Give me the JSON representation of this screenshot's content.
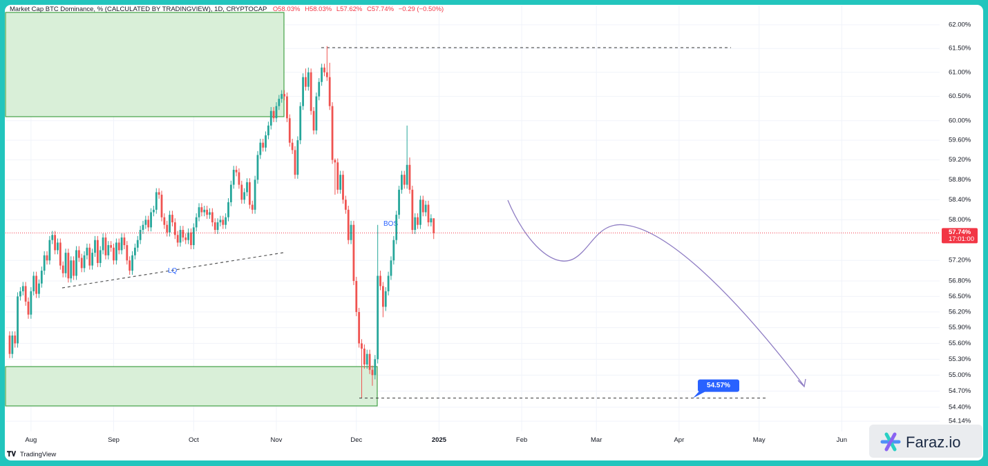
{
  "chart_data": {
    "type": "candlestick",
    "title": "Market Cap BTC Dominance, % (CALCULATED BY TRADINGVIEW), 1D, CRYPTOCAP",
    "legend_ohlc": [
      "O58.03%",
      "H58.03%",
      "L57.62%",
      "C57.74%"
    ],
    "change": "−0.29 (−0.50%)",
    "up_color": "#26a69a",
    "down_color": "#ef5350",
    "log_scale": true,
    "grid": true,
    "ylim": [
      53.95,
      62.41
    ],
    "yticks": [
      {
        "value": 62.0,
        "label": "62.00%"
      },
      {
        "value": 61.5,
        "label": "61.50%"
      },
      {
        "value": 61.0,
        "label": "61.00%"
      },
      {
        "value": 60.5,
        "label": "60.50%"
      },
      {
        "value": 60.0,
        "label": "60.00%"
      },
      {
        "value": 59.6,
        "label": "59.60%"
      },
      {
        "value": 59.2,
        "label": "59.20%"
      },
      {
        "value": 58.8,
        "label": "58.80%"
      },
      {
        "value": 58.4,
        "label": "58.40%"
      },
      {
        "value": 58.0,
        "label": "58.00%"
      },
      {
        "value": 57.2,
        "label": "57.20%"
      },
      {
        "value": 56.8,
        "label": "56.80%"
      },
      {
        "value": 56.5,
        "label": "56.50%"
      },
      {
        "value": 56.2,
        "label": "56.20%"
      },
      {
        "value": 55.9,
        "label": "55.90%"
      },
      {
        "value": 55.6,
        "label": "55.60%"
      },
      {
        "value": 55.3,
        "label": "55.30%"
      },
      {
        "value": 55.0,
        "label": "55.00%"
      },
      {
        "value": 54.7,
        "label": "54.70%"
      },
      {
        "value": 54.4,
        "label": "54.40%"
      },
      {
        "value": 54.14,
        "label": "54.14%"
      }
    ],
    "xlim": [
      -1.55,
      348.7
    ],
    "xticks": [
      {
        "value": 8,
        "label": "Aug"
      },
      {
        "value": 39,
        "label": "Sep"
      },
      {
        "value": 69,
        "label": "Oct"
      },
      {
        "value": 100,
        "label": "Nov"
      },
      {
        "value": 130,
        "label": "Dec"
      },
      {
        "value": 161,
        "label": "2025"
      },
      {
        "value": 192,
        "label": "Feb"
      },
      {
        "value": 220,
        "label": "Mar"
      },
      {
        "value": 251,
        "label": "Apr"
      },
      {
        "value": 281,
        "label": "May"
      },
      {
        "value": 312,
        "label": "Jun"
      }
    ],
    "open": [
      55.75,
      55.4,
      55.75,
      55.6,
      56.5,
      56.6,
      56.7,
      56.4,
      56.15,
      56.6,
      56.9,
      56.55,
      56.75,
      57.0,
      57.3,
      57.2,
      57.6,
      57.7,
      57.4,
      57.55,
      57.1,
      56.95,
      57.35,
      56.85,
      57.2,
      56.9,
      57.4,
      57.25,
      57.05,
      57.3,
      57.45,
      57.1,
      57.35,
      57.6,
      57.15,
      57.4,
      57.65,
      57.3,
      57.5,
      57.45,
      57.2,
      57.55,
      57.4,
      57.65,
      57.5,
      57.2,
      57.0,
      57.3,
      57.45,
      57.6,
      57.8,
      57.9,
      58.0,
      57.85,
      58.15,
      58.2,
      58.55,
      58.5,
      58.05,
      57.9,
      57.75,
      58.1,
      57.95,
      57.7,
      57.55,
      57.8,
      57.65,
      57.6,
      57.75,
      57.5,
      57.85,
      58.05,
      58.25,
      58.15,
      58.2,
      58.1,
      58.15,
      57.95,
      57.8,
      57.95,
      58.0,
      57.9,
      58.05,
      58.35,
      58.7,
      59.0,
      58.95,
      58.7,
      58.4,
      58.55,
      58.75,
      58.3,
      58.2,
      58.8,
      59.3,
      59.55,
      59.45,
      59.7,
      59.9,
      60.2,
      60.05,
      60.3,
      60.45,
      60.55,
      60.5,
      60.05,
      59.55,
      59.4,
      58.9,
      59.6,
      60.3,
      60.9,
      60.7,
      61.0,
      60.2,
      59.8,
      60.5,
      60.8,
      61.1,
      61.0,
      60.9,
      60.3,
      59.2,
      59.15,
      58.6,
      58.9,
      58.4,
      58.2,
      57.6,
      57.9,
      56.8,
      56.2,
      55.6,
      55.5,
      55.2,
      55.4,
      55.1,
      55.0,
      55.3,
      56.9,
      56.7,
      56.3,
      56.6,
      56.9,
      57.2,
      57.6,
      58.1,
      58.6,
      58.9,
      58.7,
      59.1,
      58.6,
      57.8,
      58.05,
      57.9,
      58.4,
      58.15,
      58.3,
      57.95,
      58.03
    ],
    "high": [
      55.83,
      55.83,
      55.83,
      56.58,
      56.68,
      56.78,
      56.78,
      56.48,
      56.68,
      56.98,
      56.98,
      56.83,
      57.08,
      57.38,
      57.38,
      57.68,
      57.78,
      57.78,
      57.63,
      57.63,
      57.18,
      57.43,
      57.43,
      57.28,
      57.28,
      57.48,
      57.48,
      57.33,
      57.38,
      57.53,
      57.53,
      57.43,
      57.68,
      57.68,
      57.48,
      57.73,
      57.73,
      57.58,
      57.58,
      57.53,
      57.63,
      57.63,
      57.73,
      57.73,
      57.58,
      57.28,
      57.38,
      57.53,
      57.68,
      57.88,
      57.98,
      58.08,
      58.08,
      58.23,
      58.28,
      58.63,
      58.63,
      58.58,
      58.13,
      57.98,
      58.18,
      58.18,
      58.03,
      57.78,
      57.88,
      57.88,
      57.73,
      57.83,
      57.83,
      57.93,
      58.13,
      58.33,
      58.33,
      58.28,
      58.28,
      58.23,
      58.23,
      58.03,
      58.03,
      58.08,
      58.08,
      58.13,
      58.43,
      58.78,
      59.08,
      59.08,
      59.03,
      58.78,
      58.63,
      58.83,
      58.83,
      58.38,
      58.88,
      59.38,
      59.63,
      59.63,
      59.78,
      59.98,
      60.28,
      60.28,
      60.38,
      60.53,
      60.63,
      60.63,
      60.58,
      60.13,
      59.63,
      59.48,
      59.68,
      60.38,
      60.98,
      61.08,
      61.1,
      61.08,
      60.28,
      60.58,
      60.88,
      61.18,
      61.18,
      61.55,
      61.2,
      60.38,
      59.23,
      59.23,
      58.98,
      58.98,
      58.48,
      58.28,
      57.98,
      57.98,
      56.88,
      56.28,
      55.68,
      55.58,
      55.48,
      55.48,
      55.18,
      55.38,
      57.9,
      57.0,
      56.78,
      56.68,
      56.98,
      57.28,
      57.68,
      58.18,
      58.68,
      58.98,
      58.98,
      59.9,
      59.25,
      58.68,
      58.13,
      58.13,
      58.48,
      58.48,
      58.38,
      58.38,
      58.11,
      58.03
    ],
    "low": [
      55.32,
      55.32,
      55.52,
      55.52,
      56.42,
      56.52,
      56.32,
      56.07,
      56.07,
      56.52,
      56.47,
      56.47,
      56.67,
      56.92,
      57.12,
      57.12,
      57.52,
      57.32,
      57.32,
      57.02,
      56.87,
      56.87,
      56.77,
      56.77,
      56.82,
      56.82,
      57.17,
      56.97,
      56.97,
      57.22,
      57.02,
      57.02,
      57.27,
      57.07,
      57.07,
      57.32,
      57.22,
      57.22,
      57.37,
      57.12,
      57.12,
      57.32,
      57.32,
      57.42,
      57.12,
      56.92,
      56.92,
      57.22,
      57.37,
      57.52,
      57.72,
      57.82,
      57.77,
      57.77,
      58.07,
      58.12,
      58.42,
      57.97,
      57.82,
      57.67,
      57.67,
      57.87,
      57.62,
      57.47,
      57.47,
      57.57,
      57.52,
      57.52,
      57.42,
      57.42,
      57.77,
      57.97,
      58.07,
      58.07,
      58.02,
      58.02,
      57.87,
      57.72,
      57.72,
      57.87,
      57.82,
      57.82,
      57.97,
      58.27,
      58.62,
      58.87,
      58.62,
      58.32,
      58.32,
      58.47,
      58.22,
      58.12,
      58.12,
      58.72,
      59.22,
      59.37,
      59.37,
      59.62,
      59.82,
      59.97,
      59.97,
      60.22,
      60.37,
      60.42,
      59.97,
      59.47,
      59.32,
      58.82,
      58.82,
      59.52,
      60.22,
      60.62,
      60.62,
      60.12,
      59.72,
      59.72,
      60.42,
      60.72,
      60.92,
      60.82,
      60.22,
      59.12,
      58.5,
      58.52,
      58.52,
      58.32,
      58.12,
      57.52,
      57.52,
      56.72,
      56.12,
      55.52,
      54.57,
      55.12,
      55.12,
      55.02,
      54.8,
      54.92,
      55.22,
      56.62,
      56.1,
      56.22,
      56.52,
      56.82,
      57.12,
      57.52,
      58.02,
      58.52,
      58.62,
      58.62,
      58.52,
      57.72,
      57.72,
      57.82,
      57.82,
      58.07,
      58.07,
      57.87,
      57.87,
      57.62
    ],
    "close": [
      55.4,
      55.75,
      55.6,
      56.5,
      56.6,
      56.7,
      56.4,
      56.15,
      56.6,
      56.9,
      56.55,
      56.75,
      57.0,
      57.3,
      57.2,
      57.6,
      57.7,
      57.4,
      57.55,
      57.1,
      56.95,
      57.35,
      56.85,
      57.2,
      56.9,
      57.4,
      57.25,
      57.05,
      57.3,
      57.45,
      57.1,
      57.35,
      57.6,
      57.15,
      57.4,
      57.65,
      57.3,
      57.5,
      57.45,
      57.2,
      57.55,
      57.4,
      57.65,
      57.5,
      57.2,
      57.0,
      57.3,
      57.45,
      57.6,
      57.8,
      57.9,
      58.0,
      57.85,
      58.15,
      58.2,
      58.55,
      58.5,
      58.05,
      57.9,
      57.75,
      58.1,
      57.95,
      57.7,
      57.55,
      57.8,
      57.65,
      57.6,
      57.75,
      57.5,
      57.85,
      58.05,
      58.25,
      58.15,
      58.2,
      58.1,
      58.15,
      57.95,
      57.8,
      57.95,
      58.0,
      57.9,
      58.05,
      58.35,
      58.7,
      59.0,
      58.95,
      58.7,
      58.4,
      58.55,
      58.75,
      58.3,
      58.2,
      58.8,
      59.3,
      59.55,
      59.45,
      59.7,
      59.9,
      60.2,
      60.05,
      60.3,
      60.45,
      60.55,
      60.5,
      60.05,
      59.55,
      59.4,
      58.9,
      59.6,
      60.3,
      60.9,
      60.7,
      61.0,
      60.2,
      59.8,
      60.5,
      60.8,
      61.1,
      61.0,
      60.9,
      60.3,
      59.2,
      59.15,
      58.6,
      58.9,
      58.4,
      58.2,
      57.6,
      57.9,
      56.8,
      56.2,
      55.6,
      55.5,
      55.2,
      55.4,
      55.1,
      55.0,
      55.3,
      56.9,
      56.7,
      56.3,
      56.6,
      56.9,
      57.2,
      57.6,
      58.1,
      58.6,
      58.9,
      58.7,
      59.1,
      58.6,
      57.8,
      58.05,
      57.9,
      58.4,
      58.15,
      58.3,
      57.95,
      58.03,
      57.74
    ],
    "last_label": "57.74%",
    "countdown": "17:01:00",
    "target": {
      "value": 54.57,
      "label": "54.57%"
    },
    "annotations": [
      "LQ",
      "BOS"
    ],
    "source": "TradingView",
    "watermark": "Faraz.io"
  }
}
